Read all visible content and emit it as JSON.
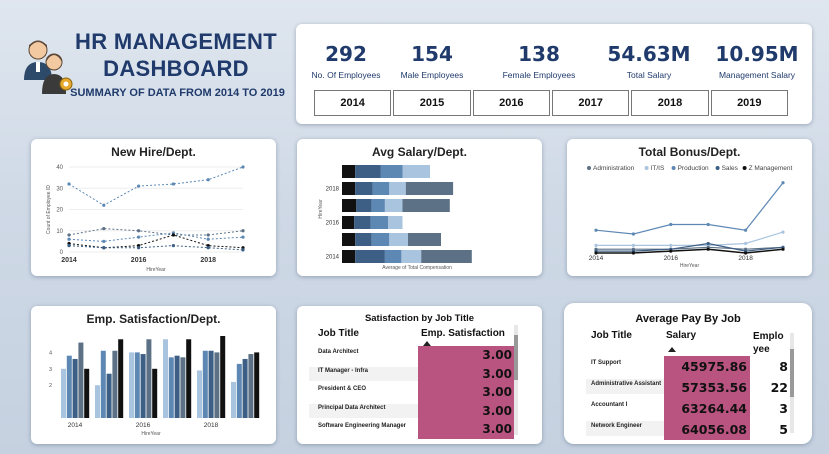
{
  "header": {
    "title": "HR MANAGEMENT DASHBOARD",
    "subtitle": "SUMMARY OF DATA FROM 2014 TO 2019"
  },
  "kpis": [
    {
      "value": "292",
      "label": "No. Of Employees"
    },
    {
      "value": "154",
      "label": "Male Employees"
    },
    {
      "value": "138",
      "label": "Female Employees"
    },
    {
      "value": "54.63M",
      "label": "Total Salary"
    },
    {
      "value": "10.95M",
      "label": "Management Salary"
    }
  ],
  "years": [
    "2014",
    "2015",
    "2016",
    "2017",
    "2018",
    "2019"
  ],
  "colors": {
    "navy": "#1f3a6b",
    "magenta": "#b9537f",
    "light": "#a9c4de",
    "mid": "#5d88b4",
    "dark": "#3e5f85",
    "slate": "#5c7186",
    "black": "#111111"
  },
  "chart_data": [
    {
      "type": "line",
      "title": "New Hire/Dept.",
      "xlabel": "HireYear",
      "ylabel": "Count of Employee ID",
      "x": [
        2014,
        2015,
        2016,
        2017,
        2018,
        2019
      ],
      "x_ticks": [
        "2014",
        "2016",
        "2018"
      ],
      "y_ticks": [
        "0",
        "10",
        "20",
        "30",
        "40"
      ],
      "ylim": [
        0,
        40
      ],
      "series": [
        {
          "values": [
            32,
            22,
            31,
            32,
            34,
            40
          ]
        },
        {
          "values": [
            8,
            11,
            10,
            8,
            8,
            10
          ]
        },
        {
          "values": [
            6,
            5,
            7,
            9,
            6,
            7
          ]
        },
        {
          "values": [
            4,
            2,
            3,
            8,
            3,
            2
          ]
        },
        {
          "values": [
            3,
            2,
            2,
            3,
            2,
            1
          ]
        }
      ]
    },
    {
      "type": "bar",
      "title": "Avg Salary/Dept.",
      "xlabel": "Average of Total Compensation",
      "ylabel": "HireYear",
      "categories": [
        "2019",
        "2018",
        "2017",
        "2016",
        "2015",
        "2014"
      ],
      "y_ticks": [
        "2018",
        "2016",
        "2014"
      ],
      "stacked": true,
      "series": [
        {
          "values": [
            12,
            12,
            13,
            11,
            12,
            12
          ]
        },
        {
          "values": [
            23,
            16,
            14,
            15,
            15,
            27
          ]
        },
        {
          "values": [
            20,
            15,
            12,
            16,
            16,
            15
          ]
        },
        {
          "values": [
            25,
            15,
            16,
            13,
            17,
            18
          ]
        },
        {
          "values": [
            0,
            43,
            43,
            0,
            30,
            46
          ]
        }
      ]
    },
    {
      "type": "line",
      "title": "Total Bonus/Dept.",
      "xlabel": "HireYear",
      "x": [
        2014,
        2015,
        2016,
        2017,
        2018,
        2019
      ],
      "x_ticks": [
        "2014",
        "2016",
        "2018"
      ],
      "legend": [
        "Administration",
        "IT/IS",
        "Production",
        "Sales",
        "Z Management"
      ],
      "series": [
        {
          "name": "Administration",
          "values": [
            2,
            2,
            2,
            3,
            2,
            3
          ]
        },
        {
          "name": "IT/IS",
          "values": [
            4,
            4,
            4,
            4,
            5,
            11
          ]
        },
        {
          "name": "Production",
          "values": [
            12,
            10,
            15,
            15,
            12,
            37
          ]
        },
        {
          "name": "Sales",
          "values": [
            1,
            1,
            2,
            5,
            1,
            3
          ]
        },
        {
          "name": "Z Management",
          "values": [
            0,
            0,
            1,
            2,
            0,
            2
          ]
        }
      ]
    },
    {
      "type": "bar",
      "title": "Emp. Satisfaction/Dept.",
      "xlabel": "HireYear",
      "categories": [
        "2014",
        "2015",
        "2016",
        "2017",
        "2018",
        "2019"
      ],
      "x_ticks": [
        "2014",
        "2016",
        "2018"
      ],
      "y_ticks": [
        "2",
        "3",
        "4"
      ],
      "ylim": [
        0,
        5
      ],
      "series": [
        {
          "values": [
            3.0,
            2.0,
            4.0,
            4.8,
            2.9,
            2.2
          ]
        },
        {
          "values": [
            3.8,
            4.1,
            4.0,
            3.7,
            4.1,
            3.3
          ]
        },
        {
          "values": [
            3.6,
            2.7,
            3.9,
            3.8,
            4.1,
            3.6
          ]
        },
        {
          "values": [
            4.6,
            4.1,
            4.8,
            3.7,
            4.0,
            3.9
          ]
        },
        {
          "values": [
            3.0,
            4.8,
            3.0,
            4.8,
            5.0,
            4.0
          ]
        }
      ]
    }
  ],
  "satisfaction_table": {
    "title": "Satisfaction by Job Title",
    "col1": "Job Title",
    "col2": "Emp. Satisfaction",
    "rows": [
      {
        "job": "Data Architect",
        "value": "3.00"
      },
      {
        "job": "IT Manager - Infra",
        "value": "3.00"
      },
      {
        "job": "President & CEO",
        "value": "3.00"
      },
      {
        "job": "Principal Data Architect",
        "value": "3.00"
      },
      {
        "job": "Software Engineering Manager",
        "value": "3.00"
      }
    ]
  },
  "pay_table": {
    "title": "Average Pay By Job",
    "col1": "Job Title",
    "col2": "Salary",
    "col3a": "Emplo",
    "col3b": "yee",
    "rows": [
      {
        "job": "IT Support",
        "salary": "45975.86",
        "count": "8"
      },
      {
        "job": "Administrative Assistant",
        "salary": "57353.56",
        "count": "22"
      },
      {
        "job": "Accountant I",
        "salary": "63264.44",
        "count": "3"
      },
      {
        "job": "Network Engineer",
        "salary": "64056.08",
        "count": "5"
      }
    ]
  }
}
